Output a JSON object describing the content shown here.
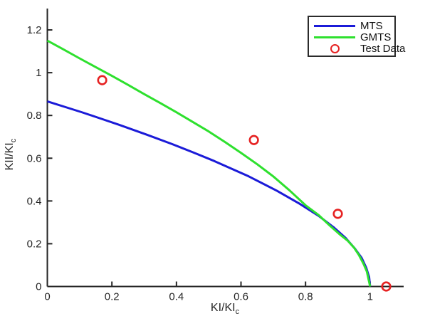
{
  "chart_data": {
    "type": "line",
    "title": "",
    "xlabel": {
      "text": "KI/KI",
      "sub": "c"
    },
    "ylabel": {
      "text": "KII/KI",
      "sub": "c"
    },
    "xlim": [
      0,
      1.104
    ],
    "ylim": [
      0,
      1.3
    ],
    "xticks": [
      0,
      0.2,
      0.4,
      0.6,
      0.8,
      1
    ],
    "xtick_labels": [
      "0",
      "0.2",
      "0.4",
      "0.6",
      "0.8",
      "1"
    ],
    "yticks": [
      0,
      0.2,
      0.4,
      0.6,
      0.8,
      1,
      1.2
    ],
    "ytick_labels": [
      "0",
      "0.2",
      "0.4",
      "0.6",
      "0.8",
      "1",
      "1.2"
    ],
    "grid": false,
    "legend_position": "top-right",
    "axis_color": "#262626",
    "background": "#ffffff",
    "series": [
      {
        "name": "MTS",
        "type": "line",
        "color": "#1b1bd8",
        "line_width": 3,
        "x": [
          0,
          0.067,
          0.109,
          0.168,
          0.223,
          0.308,
          0.385,
          0.454,
          0.517,
          0.624,
          0.711,
          0.782,
          0.84,
          0.887,
          0.924,
          0.952,
          0.974,
          0.988,
          0.997,
          1.0
        ],
        "y": [
          0.866,
          0.834,
          0.814,
          0.784,
          0.756,
          0.71,
          0.667,
          0.626,
          0.587,
          0.515,
          0.448,
          0.387,
          0.331,
          0.277,
          0.227,
          0.179,
          0.133,
          0.088,
          0.044,
          0
        ]
      },
      {
        "name": "GMTS",
        "type": "line",
        "color": "#2ee02e",
        "line_width": 3,
        "x": [
          0,
          0.05,
          0.1,
          0.15,
          0.2,
          0.25,
          0.3,
          0.35,
          0.4,
          0.45,
          0.5,
          0.55,
          0.6,
          0.65,
          0.7,
          0.75,
          0.8,
          0.84,
          0.875,
          0.905,
          0.93,
          0.95,
          0.965,
          0.98,
          0.99,
          1.0
        ],
        "y": [
          1.15,
          1.109,
          1.067,
          1.026,
          0.985,
          0.943,
          0.9,
          0.858,
          0.815,
          0.77,
          0.725,
          0.676,
          0.625,
          0.572,
          0.515,
          0.45,
          0.38,
          0.335,
          0.285,
          0.245,
          0.215,
          0.182,
          0.148,
          0.105,
          0.07,
          0
        ]
      },
      {
        "name": "Test Data",
        "type": "scatter",
        "color": "#e62222",
        "marker": "circle-open",
        "marker_radius": 5.8,
        "marker_stroke": 2.6,
        "x": [
          0.17,
          0.64,
          0.9,
          1.05
        ],
        "y": [
          0.965,
          0.685,
          0.34,
          0
        ]
      }
    ]
  },
  "legend": {
    "items": [
      {
        "label": "MTS",
        "swatch": "line"
      },
      {
        "label": "GMTS",
        "swatch": "line"
      },
      {
        "label": "Test Data",
        "swatch": "marker"
      }
    ]
  }
}
